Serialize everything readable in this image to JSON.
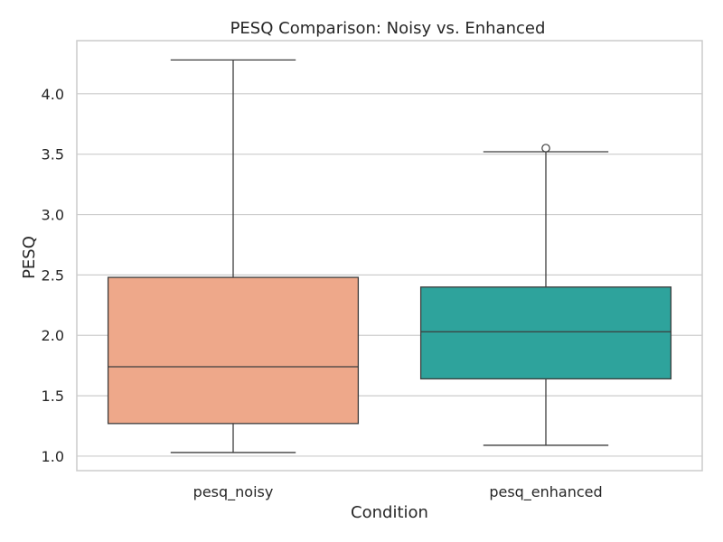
{
  "chart_data": {
    "type": "box",
    "title": "PESQ Comparison: Noisy vs. Enhanced",
    "xlabel": "Condition",
    "ylabel": "PESQ",
    "ylim": [
      0.88,
      4.44
    ],
    "yticks": [
      1.0,
      1.5,
      2.0,
      2.5,
      3.0,
      3.5,
      4.0
    ],
    "ytick_labels": [
      "1.0",
      "1.5",
      "2.0",
      "2.5",
      "3.0",
      "3.5",
      "4.0"
    ],
    "grid": true,
    "categories": [
      "pesq_noisy",
      "pesq_enhanced"
    ],
    "series": [
      {
        "name": "pesq_noisy",
        "color": "#eea88a",
        "whisker_low": 1.03,
        "q1": 1.27,
        "median": 1.74,
        "q3": 2.48,
        "whisker_high": 4.28,
        "outliers": []
      },
      {
        "name": "pesq_enhanced",
        "color": "#2ea39c",
        "whisker_low": 1.09,
        "q1": 1.64,
        "median": 2.03,
        "q3": 2.4,
        "whisker_high": 3.52,
        "outliers": [
          3.55
        ]
      }
    ]
  }
}
